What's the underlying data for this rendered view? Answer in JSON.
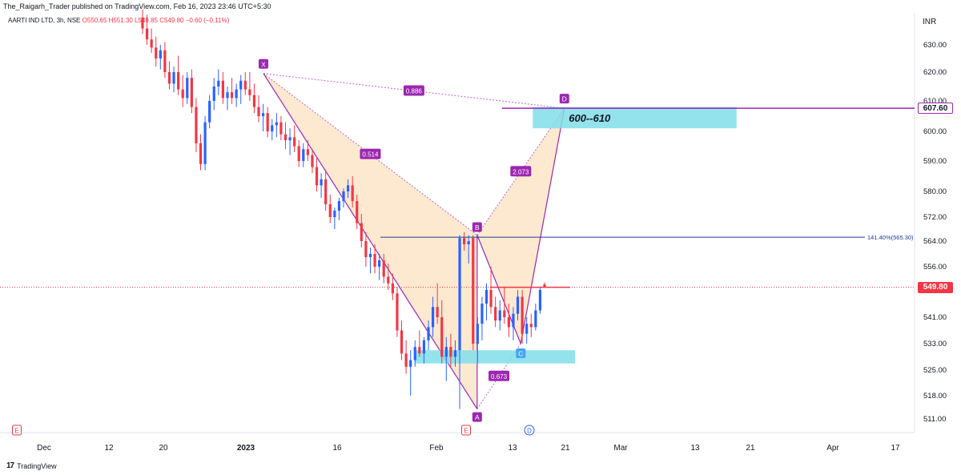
{
  "header": {
    "published": "The_Raigarh_Trader published on TradingView.com, Feb 16, 2023 23:46 UTC+5:30",
    "symbol": "AARTI IND LTD, 3h, NSE",
    "ohlc": {
      "o": "O550.65",
      "h": "H551.30",
      "l": "L549.85",
      "c": "C549.80",
      "chg": "−0.60 (−0.11%)"
    },
    "currency": "INR"
  },
  "footer": {
    "logo": "17",
    "brand": "TradingView"
  },
  "colors": {
    "up": "#2962ff",
    "down": "#f23645",
    "pattern_line": "#9c27b0",
    "pattern_fill": "#fce4c4",
    "zone": "#80deea",
    "bline": "#1e3a8a"
  },
  "chart_data": {
    "type": "candlestick",
    "yaxis": {
      "ticks": [
        511.0,
        518.0,
        525.0,
        533.0,
        541.0,
        549.0,
        556.0,
        564.0,
        572.0,
        580.0,
        590.0,
        600.0,
        610.0,
        620.0,
        630.0
      ],
      "tick_labels": [
        "511.00",
        "518.00",
        "525.00",
        "533.00",
        "541.00",
        "",
        "556.00",
        "564.00",
        "572.00",
        "580.00",
        "590.00",
        "600.00",
        "610.00",
        "620.00",
        "630.00"
      ]
    },
    "xaxis": {
      "ticks": [
        {
          "date": "2022-12-01",
          "label": "Dec"
        },
        {
          "date": "2022-12-12",
          "label": "12"
        },
        {
          "date": "2022-12-20",
          "label": "20"
        },
        {
          "date": "2023-01-02",
          "label": "2023",
          "bold": true
        },
        {
          "date": "2023-01-16",
          "label": "16"
        },
        {
          "date": "2023-02-01",
          "label": "Feb"
        },
        {
          "date": "2023-02-13",
          "label": "13"
        },
        {
          "date": "2023-02-21",
          "label": "21"
        },
        {
          "date": "2023-03-01",
          "label": "Mar"
        },
        {
          "date": "2023-03-13",
          "label": "13"
        },
        {
          "date": "2023-03-21",
          "label": "21"
        },
        {
          "date": "2023-04-03",
          "label": "Apr"
        },
        {
          "date": "2023-04-17",
          "label": "17"
        }
      ]
    },
    "candles": [
      {
        "x": "2022-12-15",
        "o": 640,
        "h": 643,
        "l": 634,
        "c": 636
      },
      {
        "x": "2022-12-15",
        "o": 636,
        "h": 641,
        "l": 630,
        "c": 632
      },
      {
        "x": "2022-12-16",
        "o": 632,
        "h": 636,
        "l": 627,
        "c": 629
      },
      {
        "x": "2022-12-16",
        "o": 629,
        "h": 633,
        "l": 622,
        "c": 625
      },
      {
        "x": "2022-12-19",
        "o": 625,
        "h": 630,
        "l": 621,
        "c": 628
      },
      {
        "x": "2022-12-19",
        "o": 628,
        "h": 631,
        "l": 618,
        "c": 620
      },
      {
        "x": "2022-12-20",
        "o": 620,
        "h": 624,
        "l": 614,
        "c": 616
      },
      {
        "x": "2022-12-20",
        "o": 616,
        "h": 622,
        "l": 613,
        "c": 620
      },
      {
        "x": "2022-12-21",
        "o": 620,
        "h": 626,
        "l": 612,
        "c": 614
      },
      {
        "x": "2022-12-21",
        "o": 614,
        "h": 619,
        "l": 608,
        "c": 611
      },
      {
        "x": "2022-12-22",
        "o": 611,
        "h": 620,
        "l": 609,
        "c": 618
      },
      {
        "x": "2022-12-22",
        "o": 618,
        "h": 621,
        "l": 606,
        "c": 608
      },
      {
        "x": "2022-12-23",
        "o": 608,
        "h": 611,
        "l": 593,
        "c": 596
      },
      {
        "x": "2022-12-23",
        "o": 596,
        "h": 599,
        "l": 587,
        "c": 589
      },
      {
        "x": "2022-12-26",
        "o": 589,
        "h": 605,
        "l": 587,
        "c": 603
      },
      {
        "x": "2022-12-26",
        "o": 603,
        "h": 612,
        "l": 601,
        "c": 610
      },
      {
        "x": "2022-12-27",
        "o": 610,
        "h": 618,
        "l": 607,
        "c": 615
      },
      {
        "x": "2022-12-27",
        "o": 615,
        "h": 621,
        "l": 612,
        "c": 617
      },
      {
        "x": "2022-12-28",
        "o": 617,
        "h": 620,
        "l": 609,
        "c": 611
      },
      {
        "x": "2022-12-28",
        "o": 611,
        "h": 615,
        "l": 607,
        "c": 613
      },
      {
        "x": "2022-12-29",
        "o": 613,
        "h": 618,
        "l": 609,
        "c": 611
      },
      {
        "x": "2022-12-29",
        "o": 611,
        "h": 616,
        "l": 608,
        "c": 614
      },
      {
        "x": "2022-12-30",
        "o": 614,
        "h": 619,
        "l": 609,
        "c": 617
      },
      {
        "x": "2022-12-30",
        "o": 617,
        "h": 620,
        "l": 612,
        "c": 614
      },
      {
        "x": "2023-01-02",
        "o": 614,
        "h": 620,
        "l": 610,
        "c": 612
      },
      {
        "x": "2023-01-02",
        "o": 612,
        "h": 616,
        "l": 606,
        "c": 608
      },
      {
        "x": "2023-01-03",
        "o": 608,
        "h": 612,
        "l": 603,
        "c": 605
      },
      {
        "x": "2023-01-03",
        "o": 605,
        "h": 609,
        "l": 600,
        "c": 606
      },
      {
        "x": "2023-01-04",
        "o": 606,
        "h": 608,
        "l": 598,
        "c": 600
      },
      {
        "x": "2023-01-04",
        "o": 600,
        "h": 604,
        "l": 597,
        "c": 602
      },
      {
        "x": "2023-01-05",
        "o": 602,
        "h": 606,
        "l": 598,
        "c": 603
      },
      {
        "x": "2023-01-05",
        "o": 603,
        "h": 605,
        "l": 597,
        "c": 599
      },
      {
        "x": "2023-01-06",
        "o": 599,
        "h": 603,
        "l": 594,
        "c": 597
      },
      {
        "x": "2023-01-06",
        "o": 597,
        "h": 601,
        "l": 592,
        "c": 598
      },
      {
        "x": "2023-01-09",
        "o": 598,
        "h": 602,
        "l": 593,
        "c": 595
      },
      {
        "x": "2023-01-09",
        "o": 595,
        "h": 597,
        "l": 588,
        "c": 590
      },
      {
        "x": "2023-01-10",
        "o": 590,
        "h": 596,
        "l": 588,
        "c": 594
      },
      {
        "x": "2023-01-10",
        "o": 594,
        "h": 597,
        "l": 590,
        "c": 592
      },
      {
        "x": "2023-01-11",
        "o": 592,
        "h": 594,
        "l": 586,
        "c": 588
      },
      {
        "x": "2023-01-11",
        "o": 588,
        "h": 591,
        "l": 580,
        "c": 582
      },
      {
        "x": "2023-01-12",
        "o": 582,
        "h": 586,
        "l": 578,
        "c": 584
      },
      {
        "x": "2023-01-12",
        "o": 584,
        "h": 587,
        "l": 574,
        "c": 576
      },
      {
        "x": "2023-01-13",
        "o": 576,
        "h": 579,
        "l": 570,
        "c": 572
      },
      {
        "x": "2023-01-13",
        "o": 572,
        "h": 575,
        "l": 568,
        "c": 574
      },
      {
        "x": "2023-01-16",
        "o": 574,
        "h": 578,
        "l": 571,
        "c": 577
      },
      {
        "x": "2023-01-16",
        "o": 577,
        "h": 581,
        "l": 575,
        "c": 580
      },
      {
        "x": "2023-01-17",
        "o": 580,
        "h": 584,
        "l": 578,
        "c": 582
      },
      {
        "x": "2023-01-17",
        "o": 582,
        "h": 585,
        "l": 575,
        "c": 577
      },
      {
        "x": "2023-01-18",
        "o": 577,
        "h": 579,
        "l": 568,
        "c": 570
      },
      {
        "x": "2023-01-18",
        "o": 570,
        "h": 573,
        "l": 562,
        "c": 564
      },
      {
        "x": "2023-01-19",
        "o": 564,
        "h": 567,
        "l": 556,
        "c": 559
      },
      {
        "x": "2023-01-19",
        "o": 559,
        "h": 562,
        "l": 554,
        "c": 560
      },
      {
        "x": "2023-01-20",
        "o": 560,
        "h": 563,
        "l": 554,
        "c": 556
      },
      {
        "x": "2023-01-20",
        "o": 556,
        "h": 560,
        "l": 552,
        "c": 558
      },
      {
        "x": "2023-01-23",
        "o": 558,
        "h": 560,
        "l": 551,
        "c": 553
      },
      {
        "x": "2023-01-23",
        "o": 553,
        "h": 557,
        "l": 549,
        "c": 551
      },
      {
        "x": "2023-01-24",
        "o": 551,
        "h": 554,
        "l": 546,
        "c": 548
      },
      {
        "x": "2023-01-24",
        "o": 548,
        "h": 550,
        "l": 535,
        "c": 537
      },
      {
        "x": "2023-01-25",
        "o": 537,
        "h": 540,
        "l": 528,
        "c": 530
      },
      {
        "x": "2023-01-25",
        "o": 530,
        "h": 534,
        "l": 524,
        "c": 526
      },
      {
        "x": "2023-01-27",
        "o": 526,
        "h": 531,
        "l": 518,
        "c": 528
      },
      {
        "x": "2023-01-27",
        "o": 528,
        "h": 534,
        "l": 526,
        "c": 532
      },
      {
        "x": "2023-01-30",
        "o": 532,
        "h": 537,
        "l": 529,
        "c": 530
      },
      {
        "x": "2023-01-30",
        "o": 530,
        "h": 535,
        "l": 527,
        "c": 534
      },
      {
        "x": "2023-01-31",
        "o": 534,
        "h": 540,
        "l": 531,
        "c": 538
      },
      {
        "x": "2023-01-31",
        "o": 538,
        "h": 547,
        "l": 535,
        "c": 544
      },
      {
        "x": "2023-02-01",
        "o": 544,
        "h": 551,
        "l": 539,
        "c": 541
      },
      {
        "x": "2023-02-01",
        "o": 541,
        "h": 546,
        "l": 527,
        "c": 529
      },
      {
        "x": "2023-02-02",
        "o": 529,
        "h": 535,
        "l": 522,
        "c": 532
      },
      {
        "x": "2023-02-02",
        "o": 532,
        "h": 536,
        "l": 526,
        "c": 529
      },
      {
        "x": "2023-02-03",
        "o": 529,
        "h": 534,
        "l": 526,
        "c": 531
      },
      {
        "x": "2023-02-03",
        "o": 531,
        "h": 566,
        "l": 514,
        "c": 565
      },
      {
        "x": "2023-02-06",
        "o": 565,
        "h": 567,
        "l": 561,
        "c": 563
      },
      {
        "x": "2023-02-06",
        "o": 563,
        "h": 566,
        "l": 557,
        "c": 564
      },
      {
        "x": "2023-02-07",
        "o": 565,
        "h": 566,
        "l": 531,
        "c": 533
      },
      {
        "x": "2023-02-07",
        "o": 533,
        "h": 541,
        "l": 527,
        "c": 539
      },
      {
        "x": "2023-02-08",
        "o": 539,
        "h": 547,
        "l": 534,
        "c": 545
      },
      {
        "x": "2023-02-08",
        "o": 545,
        "h": 551,
        "l": 540,
        "c": 549
      },
      {
        "x": "2023-02-09",
        "o": 549,
        "h": 556,
        "l": 542,
        "c": 544
      },
      {
        "x": "2023-02-09",
        "o": 544,
        "h": 547,
        "l": 538,
        "c": 540
      },
      {
        "x": "2023-02-10",
        "o": 540,
        "h": 546,
        "l": 537,
        "c": 543
      },
      {
        "x": "2023-02-10",
        "o": 543,
        "h": 550,
        "l": 539,
        "c": 541
      },
      {
        "x": "2023-02-13",
        "o": 541,
        "h": 545,
        "l": 535,
        "c": 538
      },
      {
        "x": "2023-02-13",
        "o": 538,
        "h": 544,
        "l": 534,
        "c": 542
      },
      {
        "x": "2023-02-14",
        "o": 542,
        "h": 549,
        "l": 540,
        "c": 547
      },
      {
        "x": "2023-02-14",
        "o": 547,
        "h": 549,
        "l": 533,
        "c": 536
      },
      {
        "x": "2023-02-15",
        "o": 536,
        "h": 541,
        "l": 533,
        "c": 539
      },
      {
        "x": "2023-02-15",
        "o": 539,
        "h": 542,
        "l": 535,
        "c": 538
      },
      {
        "x": "2023-02-16",
        "o": 538,
        "h": 545,
        "l": 537,
        "c": 543
      },
      {
        "x": "2023-02-16",
        "o": 543,
        "h": 550,
        "l": 542,
        "c": 549
      },
      {
        "x": "2023-02-16",
        "o": 550.65,
        "h": 551.3,
        "l": 549.85,
        "c": 549.8
      }
    ],
    "pattern": {
      "points": [
        {
          "label": "X",
          "x": "2023-01-02",
          "y": 619.5
        },
        {
          "label": "A",
          "x": "2023-02-03",
          "y": 514
        },
        {
          "label": "B",
          "x": "2023-02-03",
          "y": 566
        },
        {
          "label": "C",
          "x": "2023-02-14",
          "y": 533
        },
        {
          "label": "D",
          "x": "2023-02-16",
          "y": 607.6
        }
      ],
      "ratios": [
        {
          "label": "0.886",
          "legs": [
            "X",
            "D"
          ]
        },
        {
          "label": "0.514",
          "legs": [
            "X",
            "B"
          ]
        },
        {
          "label": "0.673",
          "legs": [
            "A",
            "C"
          ]
        },
        {
          "label": "2.073",
          "legs": [
            "B",
            "D"
          ]
        }
      ]
    },
    "zones": [
      {
        "label": "600--610",
        "y_low": 601,
        "y_high": 608,
        "x_start": "2023-02-14",
        "x_end": "2023-03-19"
      },
      {
        "label": "",
        "y_low": 527,
        "y_high": 531,
        "x_start": "2023-01-30",
        "x_end": "2023-02-21"
      }
    ],
    "levels": [
      {
        "label": "141.40%(565.30)",
        "y": 565.3,
        "x_start": "2023-01-20"
      },
      {
        "label": "",
        "y": 607.6,
        "x_start": "2023-02-13"
      },
      {
        "label": "",
        "y": 549.8,
        "x_start": "2023-02-08",
        "x_end": "2023-02-21"
      }
    ],
    "price_labels": [
      {
        "value": "607.60",
        "y": 607.6,
        "style": "outline"
      },
      {
        "value": "549.80",
        "y": 549.8,
        "style": "red"
      }
    ],
    "events": [
      {
        "symbol": "E",
        "x": "2022-12-01"
      },
      {
        "symbol": "E",
        "x": "2023-02-03"
      },
      {
        "symbol": "D",
        "x": "2023-02-16"
      }
    ]
  }
}
